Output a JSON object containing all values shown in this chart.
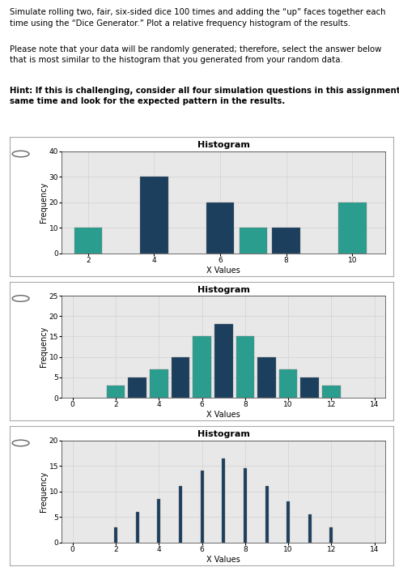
{
  "chart_title": "Histogram",
  "xlabel": "X Values",
  "ylabel": "Frequency",
  "color_teal": "#2a9d8f",
  "color_dark_blue": "#1c3f5e",
  "chart1": {
    "x": [
      2,
      4,
      6,
      7,
      8,
      10
    ],
    "heights": [
      10,
      30,
      20,
      10,
      10,
      20
    ],
    "colors": [
      "#2a9d8f",
      "#1c3f5e",
      "#1c3f5e",
      "#2a9d8f",
      "#1c3f5e",
      "#2a9d8f"
    ],
    "bar_width": 0.85,
    "ylim": [
      0,
      40
    ],
    "yticks": [
      0,
      10,
      20,
      30,
      40
    ],
    "xlim": [
      1.2,
      11.0
    ],
    "xticks": [
      2,
      4,
      6,
      8,
      10
    ]
  },
  "chart2": {
    "x": [
      2,
      3,
      4,
      5,
      6,
      7,
      8,
      9,
      10,
      11,
      12
    ],
    "heights": [
      3,
      5,
      7,
      10,
      15,
      18,
      15,
      10,
      7,
      5,
      3
    ],
    "colors": [
      "#2a9d8f",
      "#1c3f5e",
      "#2a9d8f",
      "#1c3f5e",
      "#2a9d8f",
      "#1c3f5e",
      "#2a9d8f",
      "#1c3f5e",
      "#2a9d8f",
      "#1c3f5e",
      "#2a9d8f"
    ],
    "bar_width": 0.85,
    "ylim": [
      0,
      25
    ],
    "yticks": [
      0,
      5,
      10,
      15,
      20,
      25
    ],
    "xlim": [
      -0.5,
      14.5
    ],
    "xticks": [
      0,
      2,
      4,
      6,
      8,
      10,
      12,
      14
    ]
  },
  "chart3": {
    "x": [
      2,
      3,
      4,
      5,
      6,
      7,
      8,
      9,
      10,
      11,
      12
    ],
    "heights": [
      3,
      6,
      8.5,
      11,
      14,
      16.5,
      14.5,
      11,
      8,
      5.5,
      3
    ],
    "colors": [
      "#1c3f5e",
      "#1c3f5e",
      "#1c3f5e",
      "#1c3f5e",
      "#1c3f5e",
      "#1c3f5e",
      "#1c3f5e",
      "#1c3f5e",
      "#1c3f5e",
      "#1c3f5e",
      "#1c3f5e"
    ],
    "bar_width": 0.15,
    "ylim": [
      0,
      20
    ],
    "yticks": [
      0,
      5,
      10,
      15,
      20
    ],
    "xlim": [
      -0.5,
      14.5
    ],
    "xticks": [
      0,
      2,
      4,
      6,
      8,
      10,
      12,
      14
    ]
  },
  "text_line1": "Simulate rolling two, fair, six-sided dice 100 times and adding the “up” faces together each",
  "text_line2": "time using the “Dice Generator.” Plot a relative frequency histogram of the results.",
  "text_line3": "Please note that your data will be randomly generated; therefore, select the answer below",
  "text_line4": "that is most similar to the histogram that you generated from your random data.",
  "hint_line1": "Hint: If this is challenging, consider all four simulation questions in this assignment at the",
  "hint_line2": "same time and look for the expected pattern in the results.",
  "bg_color": "#ffffff",
  "panel_bg": "#ffffff",
  "hist_bg": "#e8e8e8",
  "grid_color": "#cccccc",
  "panel_border": "#aaaaaa",
  "radio_color": "#666666"
}
